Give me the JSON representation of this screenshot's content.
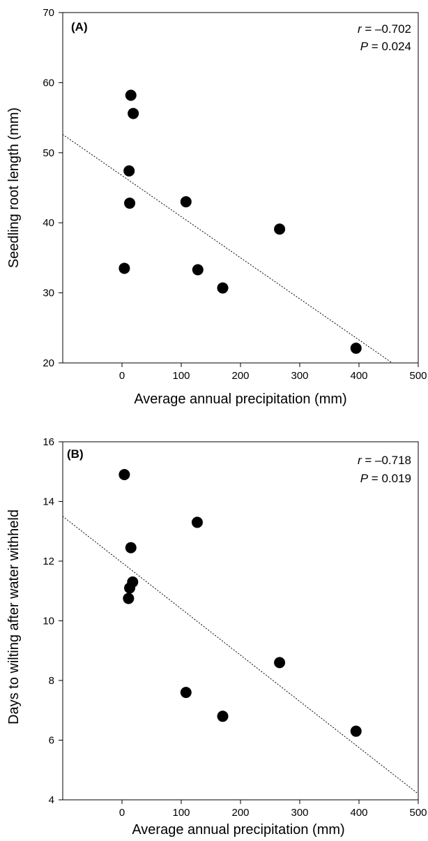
{
  "chart_data": [
    {
      "type": "scatter",
      "panel_label": "(A)",
      "xlabel": "Average annual precipitation (mm)",
      "ylabel": "Seedling root length (mm)",
      "xlim": [
        -100,
        500
      ],
      "ylim": [
        20,
        70
      ],
      "xticks": [
        0,
        100,
        200,
        300,
        400,
        500
      ],
      "yticks": [
        20,
        30,
        40,
        50,
        60,
        70
      ],
      "grid": false,
      "stats": {
        "r_symbol": "r",
        "r_value": " = –0.702",
        "p_symbol": "P",
        "p_value": " = 0.024"
      },
      "points": [
        {
          "x": 15,
          "y": 58.2
        },
        {
          "x": 19,
          "y": 55.6
        },
        {
          "x": 12,
          "y": 47.4
        },
        {
          "x": 13,
          "y": 42.8
        },
        {
          "x": 4,
          "y": 33.5
        },
        {
          "x": 108,
          "y": 43.0
        },
        {
          "x": 128,
          "y": 33.3
        },
        {
          "x": 170,
          "y": 30.7
        },
        {
          "x": 266,
          "y": 39.1
        },
        {
          "x": 395,
          "y": 22.1
        }
      ],
      "trendline": {
        "style": "dotted",
        "x": [
          -100,
          456
        ],
        "y": [
          52.6,
          20
        ]
      }
    },
    {
      "type": "scatter",
      "panel_label": "(B)",
      "xlabel": "Average annual precipitation (mm)",
      "ylabel": "Days to wilting after water withheld",
      "xlim": [
        -100,
        500
      ],
      "ylim": [
        4,
        16
      ],
      "xticks": [
        0,
        100,
        200,
        300,
        400,
        500
      ],
      "yticks": [
        4,
        6,
        8,
        10,
        12,
        14,
        16
      ],
      "grid": false,
      "stats": {
        "r_symbol": "r",
        "r_value": " = –0.718",
        "p_symbol": "P",
        "p_value": " = 0.019"
      },
      "points": [
        {
          "x": 4,
          "y": 14.9
        },
        {
          "x": 127,
          "y": 13.3
        },
        {
          "x": 15,
          "y": 12.45
        },
        {
          "x": 18,
          "y": 11.3
        },
        {
          "x": 13,
          "y": 11.1
        },
        {
          "x": 11,
          "y": 10.75
        },
        {
          "x": 108,
          "y": 7.6
        },
        {
          "x": 170,
          "y": 6.8
        },
        {
          "x": 266,
          "y": 8.6
        },
        {
          "x": 395,
          "y": 6.3
        }
      ],
      "trendline": {
        "style": "dotted",
        "x": [
          -100,
          500
        ],
        "y": [
          13.5,
          4.2
        ]
      }
    }
  ]
}
